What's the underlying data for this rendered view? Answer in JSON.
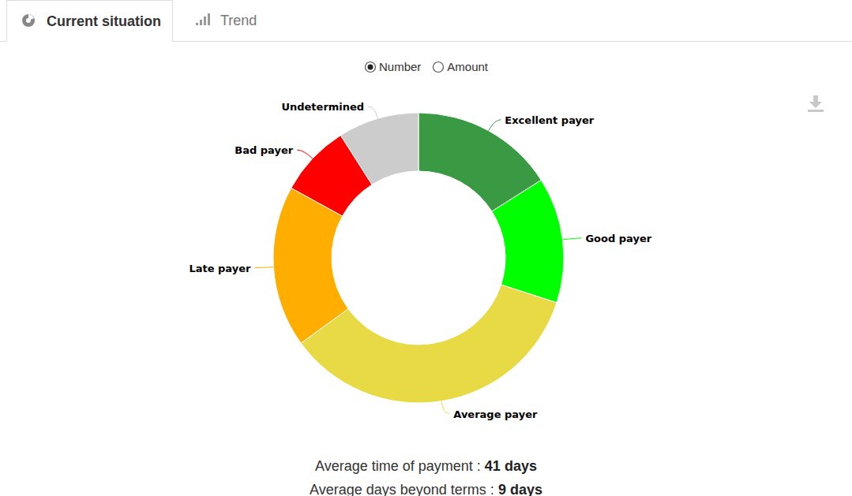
{
  "tabs": [
    {
      "label": "Current situation",
      "active": true
    },
    {
      "label": "Trend",
      "active": false
    }
  ],
  "options": [
    {
      "label": "Number",
      "checked": true
    },
    {
      "label": "Amount",
      "checked": false
    }
  ],
  "chart_data": {
    "type": "donut",
    "categories": [
      "Excellent payer",
      "Good payer",
      "Average payer",
      "Late payer",
      "Bad payer",
      "Undetermined"
    ],
    "values": [
      16,
      14,
      35,
      18,
      8,
      9
    ],
    "colors": [
      "#3a9a43",
      "#00ff00",
      "#e8da44",
      "#ffae00",
      "#ff0000",
      "#cccccc"
    ]
  },
  "summary": [
    {
      "label": "Average time of payment :",
      "value": "41 days"
    },
    {
      "label": "Average days beyond terms :",
      "value": "9 days"
    }
  ]
}
